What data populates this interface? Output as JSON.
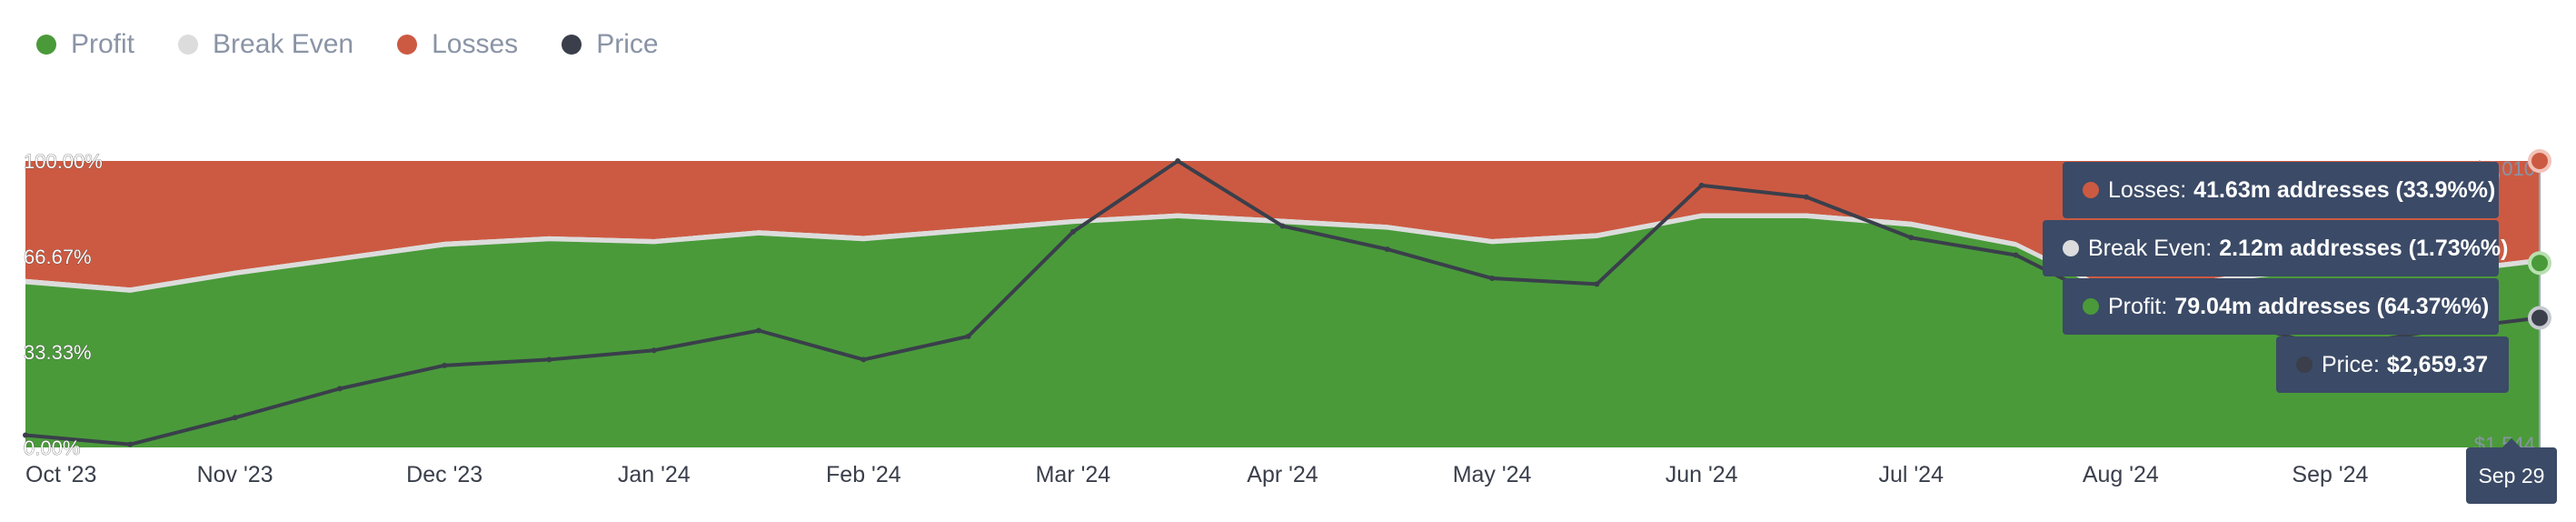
{
  "legend": [
    {
      "label": "Profit",
      "color": "#4a9a3a"
    },
    {
      "label": "Break Even",
      "color": "#dcdcdc"
    },
    {
      "label": "Losses",
      "color": "#cc5a42"
    },
    {
      "label": "Price",
      "color": "#3a3f4b"
    }
  ],
  "tooltip": {
    "losses": {
      "label": "Losses:",
      "value": "41.63m addresses (33.9%%)",
      "color": "#cc5a42"
    },
    "break_even": {
      "label": "Break Even:",
      "value": "2.12m addresses (1.73%%)",
      "color": "#dcdcdc"
    },
    "profit": {
      "label": "Profit:",
      "value": "79.04m addresses (64.37%%)",
      "color": "#4a9a3a"
    },
    "price": {
      "label": "Price:",
      "value": "$2,659.37",
      "color": "#3a3f4b"
    },
    "date": "Sep 29"
  },
  "chart_data": {
    "type": "area",
    "stacked": true,
    "x": [
      "Oct '23",
      "Oct '23",
      "Nov '23",
      "Nov '23",
      "Dec '23",
      "Dec '23",
      "Jan '24",
      "Jan '24",
      "Feb '24",
      "Feb '24",
      "Mar '24",
      "Mar '24",
      "Apr '24",
      "Apr '24",
      "May '24",
      "May '24",
      "Jun '24",
      "Jun '24",
      "Jul '24",
      "Jul '24",
      "Aug '24",
      "Aug '24",
      "Sep '24",
      "Sep '24",
      "Sep 29"
    ],
    "x_tick_labels": [
      "Oct '23",
      "Nov '23",
      "Dec '23",
      "Jan '24",
      "Feb '24",
      "Mar '24",
      "Apr '24",
      "May '24",
      "Jun '24",
      "Jul '24",
      "Aug '24",
      "Sep '24"
    ],
    "y_left_ticks": [
      "0.00%",
      "33.33%",
      "66.67%",
      "100.00%"
    ],
    "y_left_range": [
      0,
      100
    ],
    "y_right_ticks": [
      "$1,544",
      "$4,010"
    ],
    "y_right_range": [
      1544,
      4010
    ],
    "series": [
      {
        "name": "Profit",
        "color": "#4a9a3a",
        "values": [
          57,
          54,
          60,
          65,
          70,
          72,
          71,
          74,
          72,
          75,
          78,
          80,
          78,
          76,
          71,
          73,
          80,
          80,
          77,
          70,
          52,
          58,
          62,
          60,
          64.37
        ]
      },
      {
        "name": "Break Even",
        "color": "#dcdcdc",
        "values": [
          1.8,
          1.8,
          1.7,
          1.7,
          1.8,
          1.7,
          1.7,
          1.8,
          1.8,
          1.7,
          1.7,
          1.7,
          1.8,
          1.7,
          1.7,
          1.8,
          1.7,
          1.7,
          1.8,
          1.7,
          1.7,
          1.7,
          1.8,
          1.7,
          1.73
        ]
      },
      {
        "name": "Losses",
        "color": "#cc5a42",
        "values": [
          41.2,
          44.2,
          38.3,
          33.3,
          28.2,
          26.3,
          27.3,
          24.2,
          26.2,
          23.3,
          20.3,
          18.3,
          20.2,
          22.3,
          27.3,
          25.2,
          18.3,
          18.3,
          21.2,
          28.3,
          46.3,
          40.3,
          36.2,
          38.3,
          33.9
        ]
      },
      {
        "name": "Price",
        "color": "#3a3f4b",
        "axis": "right",
        "values": [
          1650,
          1570,
          1800,
          2050,
          2250,
          2300,
          2380,
          2550,
          2300,
          2500,
          3400,
          4010,
          3450,
          3250,
          3000,
          2950,
          3800,
          3700,
          3350,
          3200,
          2750,
          2650,
          2400,
          2550,
          2659.37
        ]
      }
    ]
  }
}
